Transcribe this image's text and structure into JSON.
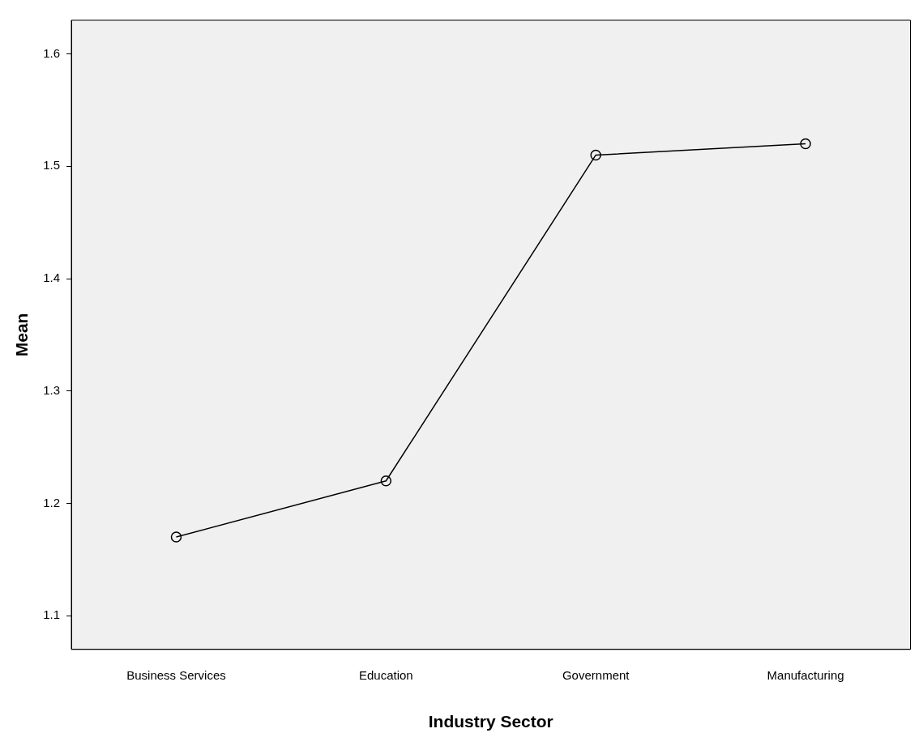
{
  "chart_data": {
    "type": "line",
    "xlabel": "Industry Sector",
    "ylabel": "Mean",
    "categories": [
      "Business Services",
      "Education",
      "Government",
      "Manufacturing"
    ],
    "values": [
      1.17,
      1.22,
      1.51,
      1.52
    ],
    "color": "#000000",
    "marker": "circle",
    "ylim": [
      1.07,
      1.63
    ],
    "yticks": [
      1.1,
      1.2,
      1.3,
      1.4,
      1.5,
      1.6
    ]
  }
}
